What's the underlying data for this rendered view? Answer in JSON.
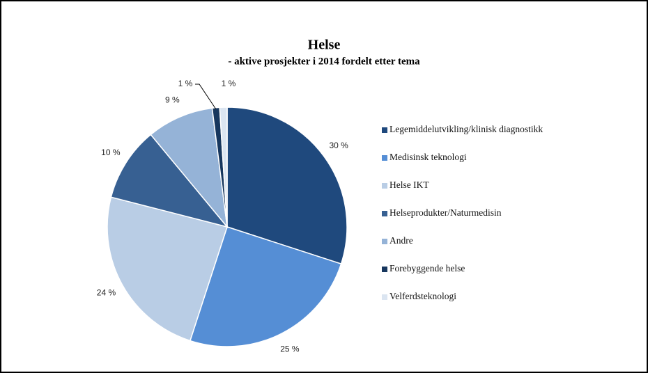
{
  "chart_data": {
    "type": "pie",
    "title": "Helse",
    "subtitle": "- aktive prosjekter i 2014 fordelt etter tema",
    "categories": [
      "Legemiddelutvikling/klinisk diagnostikk",
      "Medisinsk teknologi",
      "Helse IKT",
      "Helseprodukter/Naturmedisin",
      "Andre",
      "Forebyggende helse",
      "Velferdsteknologi"
    ],
    "values": [
      30,
      25,
      24,
      10,
      9,
      1,
      1
    ],
    "value_labels": [
      "30 %",
      "25 %",
      "24 %",
      "10 %",
      "9 %",
      "1 %",
      "1 %"
    ],
    "colors": [
      "#1f497d",
      "#558ed5",
      "#b9cde5",
      "#376092",
      "#95b3d7",
      "#17375e",
      "#dbe5f1"
    ],
    "legend": "right"
  }
}
